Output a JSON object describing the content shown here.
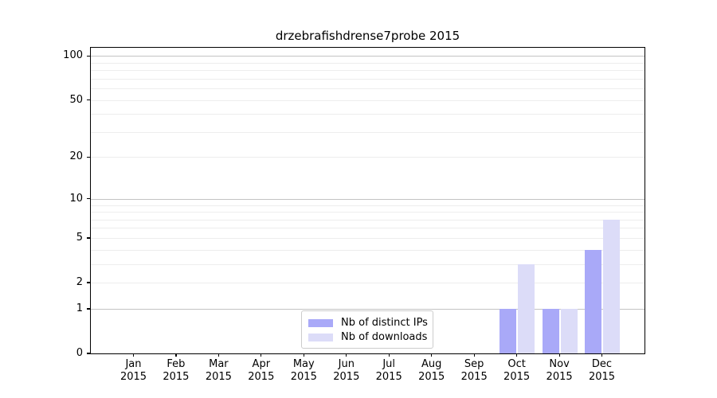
{
  "chart_data": {
    "type": "bar",
    "title": "drzebrafishdrense7probe 2015",
    "categories": [
      "Jan",
      "Feb",
      "Mar",
      "Apr",
      "May",
      "Jun",
      "Jul",
      "Aug",
      "Sep",
      "Oct",
      "Nov",
      "Dec"
    ],
    "category_year": "2015",
    "series": [
      {
        "name": "Nb of distinct IPs",
        "color": "#a9a9f8",
        "values": [
          0,
          0,
          0,
          0,
          0,
          0,
          0,
          0,
          0,
          1,
          1,
          4
        ]
      },
      {
        "name": "Nb of downloads",
        "color": "#dcdcf8",
        "values": [
          0,
          0,
          0,
          0,
          0,
          0,
          0,
          0,
          0,
          3,
          1,
          7
        ]
      }
    ],
    "y_axis": {
      "scale": "log1p",
      "tick_labels": [
        0,
        1,
        2,
        5,
        10,
        20,
        50,
        100
      ],
      "major_gridlines": [
        1,
        10,
        100
      ],
      "minor_gridlines": [
        2,
        3,
        4,
        5,
        6,
        7,
        8,
        9,
        20,
        30,
        40,
        50,
        60,
        70,
        80,
        90
      ],
      "ylim": [
        0,
        113
      ]
    },
    "legend_position": "lower center-left",
    "grid": true,
    "colors": {
      "major_grid": "#c3c3c3",
      "minor_grid": "#ededed",
      "axis": "#000000",
      "background": "#ffffff"
    }
  }
}
